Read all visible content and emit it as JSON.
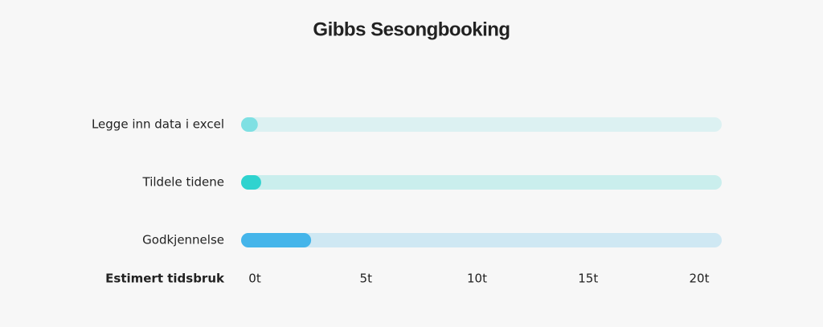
{
  "chart_data": {
    "type": "hbar",
    "title": "Gibbs Sesongbooking",
    "x_label": "Estimert tidsbruk",
    "categories": [
      "Legge inn data i excel",
      "Tildele tidene",
      "Godkjennelse"
    ],
    "values": [
      0.1,
      0.25,
      2.5
    ],
    "colors": [
      "#7fe0e3",
      "#2fd3cf",
      "#45b5ea"
    ],
    "xlim": [
      0,
      20
    ],
    "xticks": [
      {
        "value": 0,
        "label": "0t"
      },
      {
        "value": 5,
        "label": "5t"
      },
      {
        "value": 10,
        "label": "10t"
      },
      {
        "value": 15,
        "label": "15t"
      },
      {
        "value": 20,
        "label": "20t"
      }
    ]
  }
}
